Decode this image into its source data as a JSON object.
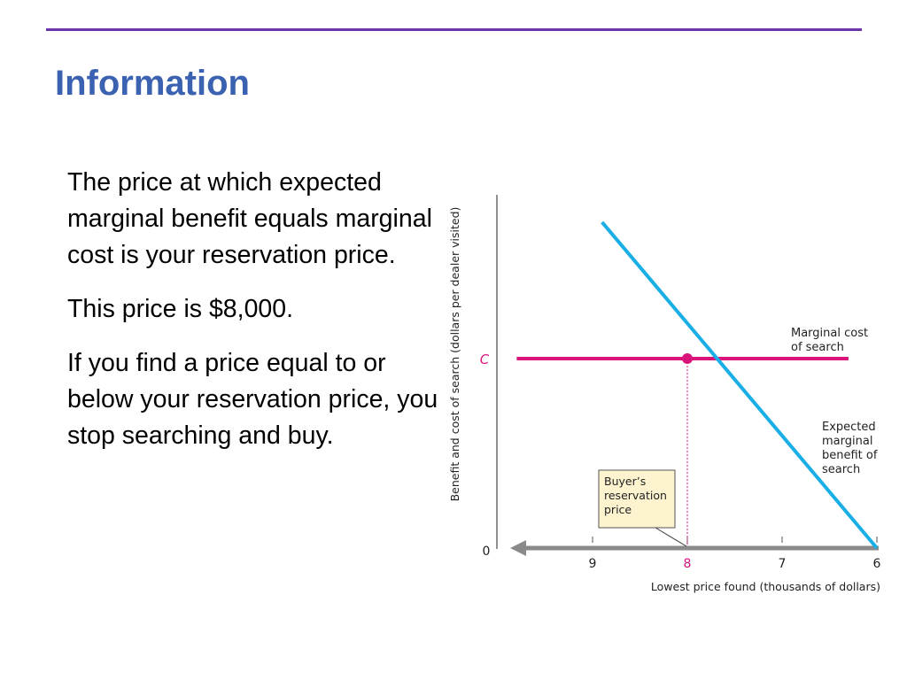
{
  "slide": {
    "title": "Information",
    "paragraphs": [
      "The price at which expected marginal benefit equals marginal cost is your reservation price.",
      "This price is $8,000.",
      "If you find a price equal to or below your reservation price, you stop searching and buy."
    ]
  },
  "colors": {
    "title": "#3a62b0",
    "rule": "#6a35a8",
    "benefit_line": "#1aaee6",
    "cost_line": "#d9137a",
    "axis_arrow": "#8a8a8a",
    "callout_fill": "#fdf3cf"
  },
  "chart_data": {
    "type": "line",
    "xlabel": "Lowest price found (thousands of dollars)",
    "ylabel": "Benefit and cost of search (dollars per dealer visited)",
    "x_ticks": [
      "9",
      "8",
      "7",
      "6"
    ],
    "x_reversed": true,
    "origin_label": "0",
    "y_tick_label": "C",
    "series": [
      {
        "name": "Marginal cost of search",
        "x": [
          9.8,
          6.3
        ],
        "y": [
          1,
          1
        ]
      },
      {
        "name": "Expected marginal benefit of search",
        "x": [
          8.9,
          6.0
        ],
        "y": [
          1.72,
          0
        ]
      }
    ],
    "intersection": {
      "x": 8,
      "y": 1
    },
    "callout": "Buyer's reservation price"
  }
}
